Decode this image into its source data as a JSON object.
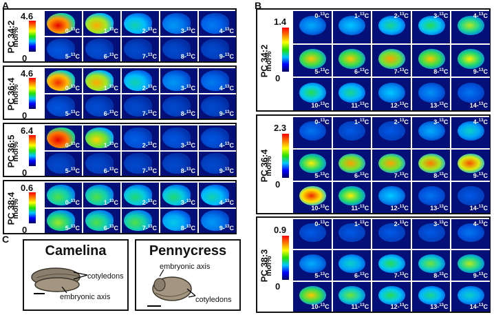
{
  "labels": {
    "A": "A",
    "B": "B",
    "C": "C"
  },
  "panelA": [
    {
      "lipid": "PC 34:2",
      "max": "4.6",
      "min": "0",
      "units": "mol%",
      "tiles": [
        "0-¹³C",
        "1-¹³C",
        "2-¹³C",
        "3-¹³C",
        "4-¹³C",
        "5-¹³C",
        "6-¹³C",
        "7-¹³C",
        "8-¹³C",
        "9-¹³C"
      ]
    },
    {
      "lipid": "PC 36:4",
      "max": "4.6",
      "min": "0",
      "units": "mol%",
      "tiles": [
        "0-¹³C",
        "1-¹³C",
        "2-¹³C",
        "3-¹³C",
        "4-¹³C",
        "5-¹³C",
        "6-¹³C",
        "7-¹³C",
        "8-¹³C",
        "9-¹³C"
      ]
    },
    {
      "lipid": "PC 36:5",
      "max": "6.4",
      "min": "0",
      "units": "mol%",
      "tiles": [
        "0-¹³C",
        "1-¹³C",
        "2-¹³C",
        "3-¹³C",
        "4-¹³C",
        "5-¹³C",
        "6-¹³C",
        "7-¹³C",
        "8-¹³C",
        "9-¹³C"
      ]
    },
    {
      "lipid": "PC 38:4",
      "max": "0.6",
      "min": "0",
      "units": "mol%",
      "tiles": [
        "0-¹³C",
        "1-¹³C",
        "2-¹³C",
        "3-¹³C",
        "4-¹³C",
        "5-¹³C",
        "6-¹³C",
        "7-¹³C",
        "8-¹³C",
        "9-¹³C"
      ]
    }
  ],
  "panelB": [
    {
      "lipid": "PC 34:2",
      "max": "1.4",
      "min": "0",
      "units": "mol%",
      "tiles": [
        "0-¹³C",
        "1-¹³C",
        "2-¹³C",
        "3-¹³C",
        "4-¹³C",
        "5-¹³C",
        "6-¹³C",
        "7-¹³C",
        "8-¹³C",
        "9-¹³C",
        "10-¹³C",
        "11-¹³C",
        "12-¹³C",
        "13-¹³C",
        "14-¹³C"
      ]
    },
    {
      "lipid": "PC 36:4",
      "max": "2.3",
      "min": "0",
      "units": "mol%",
      "tiles": [
        "0-¹³C",
        "1-¹³C",
        "2-¹³C",
        "3-¹³C",
        "4-¹³C",
        "5-¹³C",
        "6-¹³C",
        "7-¹³C",
        "8-¹³C",
        "9-¹³C",
        "10-¹³C",
        "11-¹³C",
        "12-¹³C",
        "13-¹³C",
        "14-¹³C"
      ]
    },
    {
      "lipid": "PC 38:3",
      "max": "0.9",
      "min": "0",
      "units": "mol%",
      "tiles": [
        "0-¹³C",
        "1-¹³C",
        "2-¹³C",
        "3-¹³C",
        "4-¹³C",
        "5-¹³C",
        "6-¹³C",
        "7-¹³C",
        "8-¹³C",
        "9-¹³C",
        "10-¹³C",
        "11-¹³C",
        "12-¹³C",
        "13-¹³C",
        "14-¹³C"
      ]
    }
  ],
  "panelC": {
    "camelina": {
      "title": "Camelina",
      "cotyledons": "cotyledons",
      "embryonic_axis": "embryonic axis"
    },
    "pennycress": {
      "title": "Pennycress",
      "embryonic_axis": "embryonic axis",
      "cotyledons": "cotyledons"
    }
  }
}
